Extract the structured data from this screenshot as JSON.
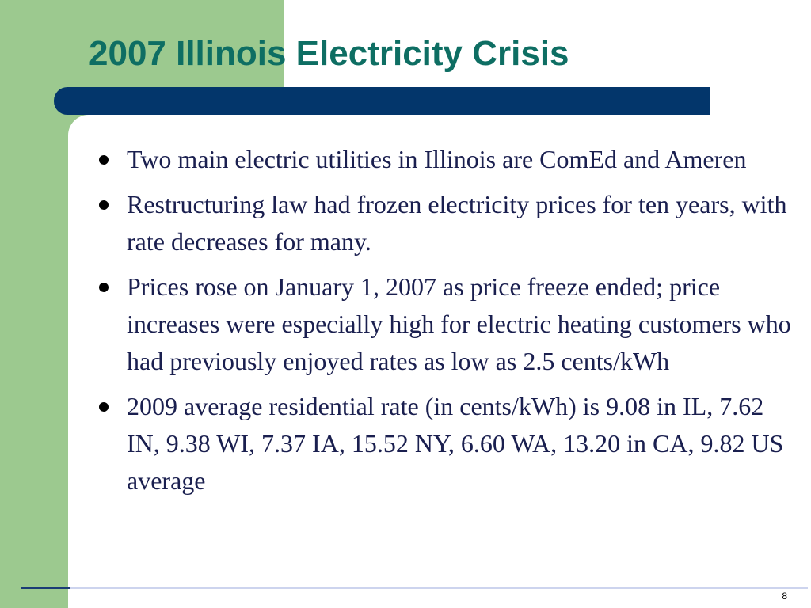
{
  "slide": {
    "title": "2007 Illinois Electricity Crisis",
    "bullets": [
      "Two main electric utilities in Illinois are ComEd and Ameren",
      "Restructuring law had frozen electricity prices for ten years, with rate decreases for many.",
      "Prices rose on January 1, 2007 as price freeze ended; price increases were especially high for electric heating customers who had previously enjoyed rates as low as 2.5 cents/kWh",
      "2009 average residential rate (in cents/kWh) is 9.08 in IL, 7.62 IN, 9.38 WI,  7.37 IA, 15.52 NY, 6.60 WA, 13.20 in CA, 9.82 US average"
    ],
    "page_number": "8"
  },
  "colors": {
    "accent_green": "#9cc98f",
    "title_teal": "#0e6e63",
    "title_bar_navy": "#03366b",
    "body_text": "#1a1f4f"
  }
}
